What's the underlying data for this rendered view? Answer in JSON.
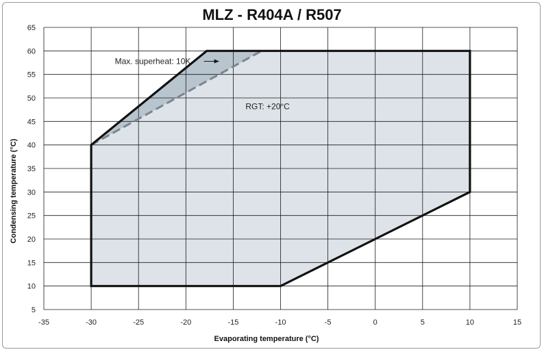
{
  "chart_data": {
    "type": "area",
    "title": "MLZ - R404A / R507",
    "xlabel": "Evaporating temperature (°C)",
    "ylabel": "Condensing temperature (°C)",
    "xlim": [
      -35,
      15
    ],
    "ylim": [
      5,
      65
    ],
    "xticks": [
      -35,
      -30,
      -25,
      -20,
      -15,
      -10,
      -5,
      0,
      5,
      10,
      15
    ],
    "yticks": [
      5,
      10,
      15,
      20,
      25,
      30,
      35,
      40,
      45,
      50,
      55,
      60,
      65
    ],
    "grid": true,
    "envelope": {
      "points": [
        [
          -30,
          10
        ],
        [
          -10,
          10
        ],
        [
          10,
          30
        ],
        [
          10,
          60
        ],
        [
          -17.8,
          60
        ],
        [
          -30,
          40
        ]
      ],
      "fill": "#dde3e8",
      "stroke": "#111111"
    },
    "superheat_boundary": {
      "points": [
        [
          -30,
          40
        ],
        [
          -12,
          60
        ]
      ],
      "fill": "#b8c4ce",
      "stroke": "#7a8590"
    },
    "annotations": [
      {
        "text": "Max. superheat: 10K",
        "x": -27.5,
        "y": 57.8,
        "arrow_to": [
          -16.5,
          57.8
        ]
      },
      {
        "text": "RGT: +20°C",
        "x": -13.7,
        "y": 48.2
      }
    ]
  }
}
